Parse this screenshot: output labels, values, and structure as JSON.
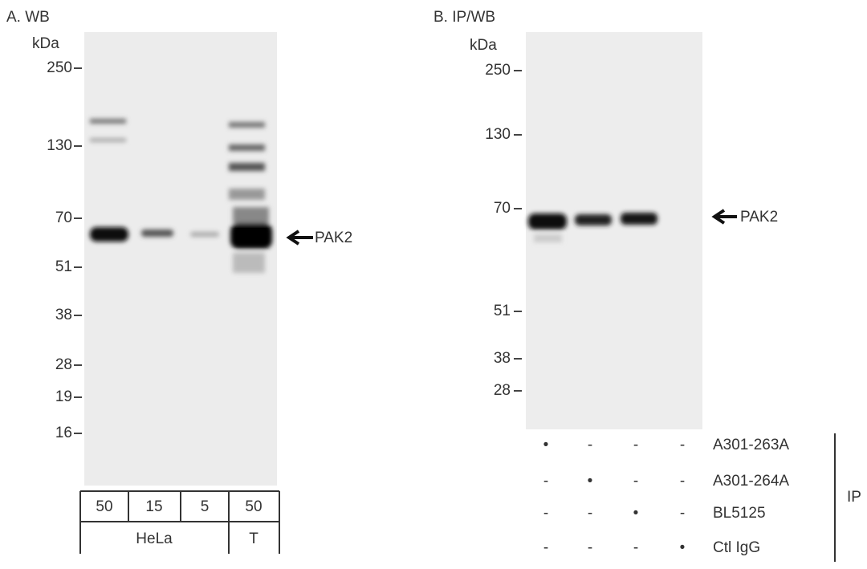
{
  "panel_a": {
    "label": "A. WB",
    "unit": "kDa",
    "markers": [
      "250",
      "130",
      "70",
      "51",
      "38",
      "28",
      "19",
      "16"
    ],
    "target": "PAK2",
    "loads": [
      "50",
      "15",
      "5",
      "50"
    ],
    "cell_lines": [
      "HeLa",
      "T"
    ]
  },
  "panel_b": {
    "label": "B. IP/WB",
    "unit": "kDa",
    "markers": [
      "250",
      "130",
      "70",
      "51",
      "38",
      "28"
    ],
    "target": "PAK2",
    "ip_rows": [
      {
        "label": "A301-263A",
        "marks": [
          "•",
          "-",
          "-",
          "-"
        ]
      },
      {
        "label": "A301-264A",
        "marks": [
          "-",
          "•",
          "-",
          "-"
        ]
      },
      {
        "label": "BL5125",
        "marks": [
          "-",
          "-",
          "•",
          "-"
        ]
      },
      {
        "label": "Ctl IgG",
        "marks": [
          "-",
          "-",
          "-",
          "•"
        ]
      }
    ],
    "ip_label": "IP"
  }
}
